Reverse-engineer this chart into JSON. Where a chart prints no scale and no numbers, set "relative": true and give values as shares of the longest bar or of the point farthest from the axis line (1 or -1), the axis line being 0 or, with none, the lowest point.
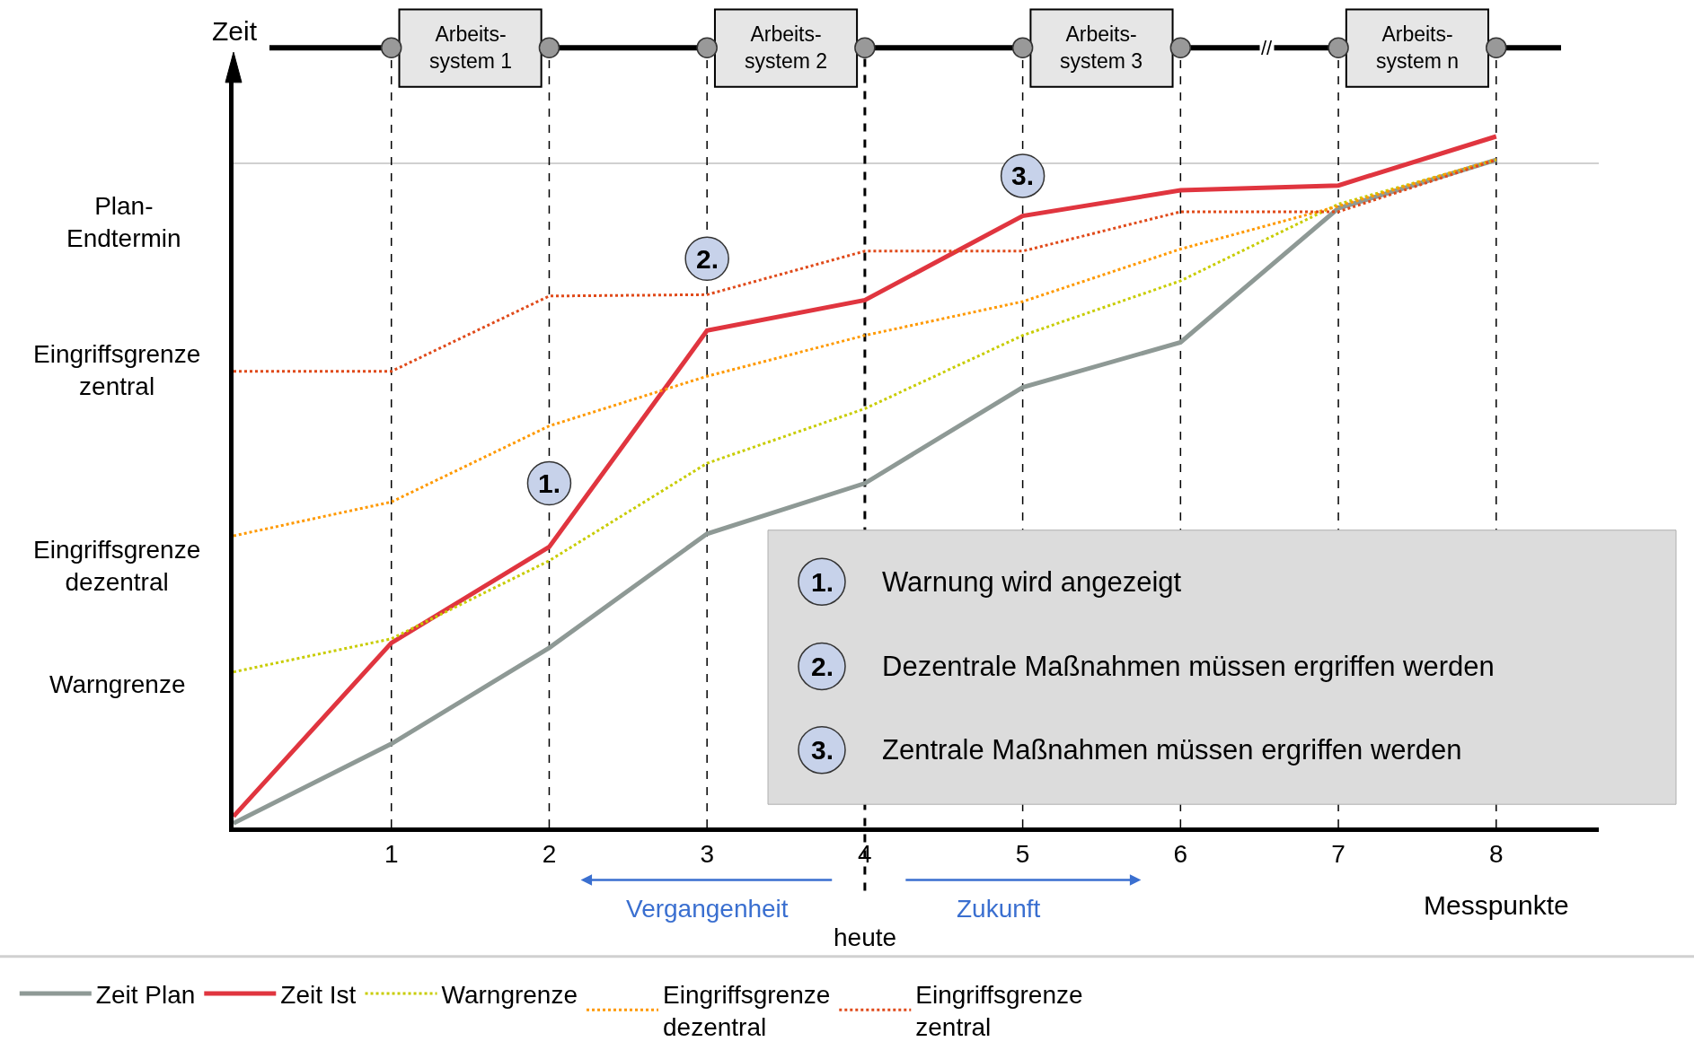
{
  "chart_data": {
    "type": "line",
    "relative": true,
    "xlabel": "Messpunkte",
    "ylabel": "Zeit",
    "categories": [
      null,
      "1",
      "2",
      "3",
      "4",
      "5",
      "6",
      "7",
      "8"
    ],
    "series": [
      {
        "name": "Zeit Plan",
        "color": "#8e9995",
        "line_style": "solid",
        "values": [
          0.006,
          0.121,
          0.26,
          0.425,
          0.498,
          0.637,
          0.702,
          0.896,
          0.966
        ]
      },
      {
        "name": "Zeit Ist",
        "color": "#e0353f",
        "line_style": "solid",
        "values": [
          0.016,
          0.267,
          0.406,
          0.719,
          0.763,
          0.885,
          0.922,
          0.929,
          1.0
        ]
      },
      {
        "name": "Warngrenze",
        "color": "#c8cc00",
        "line_style": "dotted",
        "values": [
          0.225,
          0.273,
          0.386,
          0.527,
          0.606,
          0.712,
          0.791,
          0.902,
          0.966
        ]
      },
      {
        "name": "Eingriffsgrenze\ndezentral",
        "color": "#ff9900",
        "line_style": "dotted",
        "values": [
          0.422,
          0.471,
          0.581,
          0.653,
          0.712,
          0.761,
          0.837,
          0.899,
          0.967
        ]
      },
      {
        "name": "Eingriffsgrenze\nzentral",
        "color": "#e04a1a",
        "line_style": "dotted",
        "values": [
          0.66,
          0.66,
          0.769,
          0.771,
          0.834,
          0.834,
          0.891,
          0.891,
          0.966
        ]
      }
    ],
    "ref_lines": [
      {
        "axis": "y",
        "value": 0.961,
        "label": "Plan-\nEndtermin",
        "color": "#c0c0c0",
        "line_style": "solid"
      },
      {
        "axis": "x",
        "value": "1",
        "color": "#000000",
        "line_style": "dashed"
      },
      {
        "axis": "x",
        "value": "2",
        "color": "#000000",
        "line_style": "dashed"
      },
      {
        "axis": "x",
        "value": "3",
        "color": "#000000",
        "line_style": "dashed"
      },
      {
        "axis": "x",
        "value": "4",
        "label": "heute",
        "color": "#000000",
        "line_style": "dashed"
      },
      {
        "axis": "x",
        "value": "5",
        "color": "#000000",
        "line_style": "dashed"
      },
      {
        "axis": "x",
        "value": "6",
        "color": "#000000",
        "line_style": "dashed"
      },
      {
        "axis": "x",
        "value": "7",
        "color": "#000000",
        "line_style": "dashed"
      },
      {
        "axis": "x",
        "value": "8",
        "color": "#000000",
        "line_style": "dashed"
      }
    ],
    "annotations": [
      {
        "text": "1.",
        "x": "2",
        "y": 0.498
      },
      {
        "text": "2.",
        "x": "3",
        "y": 0.823
      },
      {
        "text": "3.",
        "x": "5",
        "y": 0.943
      },
      "Arbeits-\nsystem 1",
      "Arbeits-\nsystem 2",
      "Arbeits-\nsystem 3",
      "Arbeits-\nsystem n",
      "//",
      "1.",
      "Warnung wird angezeigt",
      "2.",
      "Dezentrale Maßnahmen müssen ergriffen werden",
      "3.",
      "Zentrale Maßnahmen müssen ergriffen werden",
      "Vergangenheit",
      "Zukunft",
      "Eingriffsgrenze\nzentral",
      "Eingriffsgrenze\ndezentral",
      "Warngrenze"
    ],
    "grid": false,
    "legend": "bottom",
    "marker": "none"
  }
}
